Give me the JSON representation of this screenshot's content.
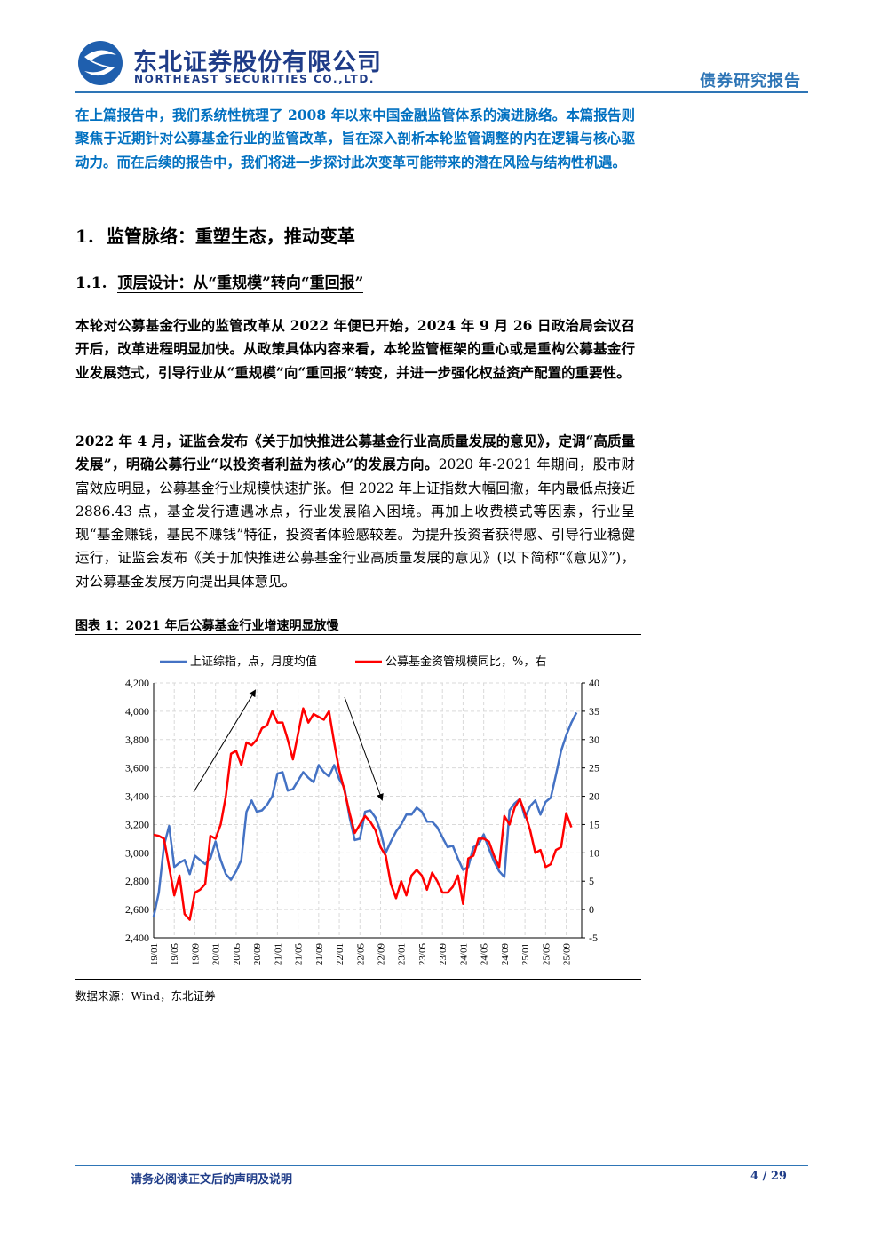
{
  "header": {
    "company_cn": "东北证券股份有限公司",
    "company_en": "NORTHEAST SECURITIES CO.,LTD.",
    "report_type": "债券研究报告"
  },
  "intro": "在上篇报告中，我们系统性梳理了 2008 年以来中国金融监管体系的演进脉络。本篇报告则聚焦于近期针对公募基金行业的监管改革，旨在深入剖析本轮监管调整的内在逻辑与核心驱动力。而在后续的报告中，我们将进一步探讨此次变革可能带来的潜在风险与结构性机遇。",
  "section": {
    "number": "1.",
    "title": "监管脉络：重塑生态，推动变革"
  },
  "subsection": {
    "number": "1.1.",
    "title": "顶层设计：从“重规模”转向“重回报”"
  },
  "paragraphs": [
    {
      "bold": "本轮对公募基金行业的监管改革从 2022 年便已开始，2024 年 9 月 26 日政治局会议召开后，改革进程明显加快。从政策具体内容来看，本轮监管框架的重心或是重构公募基金行业发展范式，引导行业从“重规模”向“重回报”转变，并进一步强化权益资产配置的重要性。"
    },
    {
      "bold": "2022 年 4 月，证监会发布《关于加快推进公募基金行业高质量发展的意见》，定调“高质量发展”，明确公募行业“以投资者利益为核心”的发展方向。",
      "normal": "2020 年-2021 年期间，股市财富效应明显，公募基金行业规模快速扩张。但 2022 年上证指数大幅回撤，年内最低点接近 2886.43 点，基金发行遭遇冰点，行业发展陷入困境。再加上收费模式等因素，行业呈现“基金赚钱，基民不赚钱”特征，投资者体验感较差。为提升投资者获得感、引导行业稳健运行，证监会发布《关于加快推进公募基金行业高质量发展的意见》(以下简称“《意见》”)，对公募基金发展方向提出具体意见。"
    }
  ],
  "chart_data": {
    "type": "line",
    "title": "图表 1：2021 年后公募基金行业增速明显放慢",
    "source": "数据来源：Wind，东北证券",
    "categories": [
      "19/01",
      null,
      null,
      null,
      "19/05",
      null,
      null,
      null,
      "19/09",
      null,
      null,
      null,
      "20/01",
      null,
      null,
      null,
      "20/05",
      null,
      null,
      null,
      "20/09",
      null,
      null,
      null,
      "21/01",
      null,
      null,
      null,
      "21/05",
      null,
      null,
      null,
      "21/09",
      null,
      null,
      null,
      "22/01",
      null,
      null,
      null,
      "22/05",
      null,
      null,
      null,
      "22/09",
      null,
      null,
      null,
      "23/01",
      null,
      null,
      null,
      "23/05",
      null,
      null,
      null,
      "23/09",
      null,
      null,
      null,
      "24/01",
      null,
      null,
      null,
      "24/05",
      null,
      null,
      null,
      "24/09",
      null,
      null,
      null,
      "25/01",
      null,
      null,
      null,
      "25/05",
      null,
      null,
      null,
      "25/09",
      null,
      null
    ],
    "series": [
      {
        "name": "上证综指，点，月度均值",
        "color": "#4472c4",
        "axis": "y",
        "values": [
          2550,
          2720,
          3050,
          3190,
          2900,
          2930,
          2950,
          2850,
          2980,
          2950,
          2920,
          2960,
          3080,
          2950,
          2850,
          2810,
          2870,
          2950,
          3290,
          3370,
          3290,
          3300,
          3340,
          3400,
          3560,
          3570,
          3440,
          3450,
          3510,
          3570,
          3530,
          3500,
          3620,
          3570,
          3540,
          3620,
          3520,
          3460,
          3250,
          3090,
          3100,
          3290,
          3300,
          3250,
          3150,
          3000,
          3080,
          3150,
          3200,
          3270,
          3270,
          3320,
          3290,
          3220,
          3220,
          3180,
          3110,
          3040,
          3050,
          2960,
          2880,
          2900,
          3040,
          3060,
          3130,
          3030,
          2940,
          2870,
          2830,
          3300,
          3350,
          3380,
          3250,
          3330,
          3370,
          3270,
          3360,
          3390,
          3550,
          3720,
          3830,
          3920,
          3990
        ]
      },
      {
        "name": "公募基金资管规模同比，%，右",
        "color": "#ff0000",
        "axis": "y2",
        "values": [
          13.2,
          13,
          12.5,
          7.5,
          2.5,
          6,
          -0.8,
          -1.8,
          3,
          3.5,
          4.5,
          13,
          12.5,
          15,
          20,
          27.5,
          28,
          25.5,
          29.5,
          29,
          30,
          32,
          32.5,
          35,
          33,
          33,
          30,
          26.5,
          31,
          35.5,
          33,
          34.5,
          34,
          33.5,
          35,
          29.5,
          24.5,
          21,
          17,
          13.5,
          15,
          16.5,
          15.5,
          14,
          11,
          9.5,
          4.5,
          2,
          5,
          2.5,
          6,
          7,
          6,
          3.5,
          6.5,
          5,
          3,
          3,
          4,
          6,
          1,
          9,
          9.5,
          12.5,
          12.5,
          12,
          9.5,
          7.5,
          16.5,
          15,
          18,
          19.5,
          17,
          14,
          10,
          10.5,
          7.5,
          8,
          10.5,
          11,
          17,
          14.5,
          null
        ]
      }
    ],
    "ylim": [
      2400,
      4200
    ],
    "yticks": [
      {
        "value": 2400,
        "label": "2,400"
      },
      {
        "value": 2600,
        "label": "2,600"
      },
      {
        "value": 2800,
        "label": "2,800"
      },
      {
        "value": 3000,
        "label": "3,000"
      },
      {
        "value": 3200,
        "label": "3,200"
      },
      {
        "value": 3400,
        "label": "3,400"
      },
      {
        "value": 3600,
        "label": "3,600"
      },
      {
        "value": 3800,
        "label": "3,800"
      },
      {
        "value": 4000,
        "label": "4,000"
      },
      {
        "value": 4200,
        "label": "4,200"
      }
    ],
    "y2lim": [
      -5,
      40
    ],
    "y2ticks": [
      -5,
      0,
      5,
      10,
      15,
      20,
      25,
      30,
      35,
      40
    ],
    "grid": true,
    "legend": "top"
  },
  "footer": {
    "disclaimer": "请务必阅读正文后的声明及说明",
    "page": "4 / 29"
  }
}
